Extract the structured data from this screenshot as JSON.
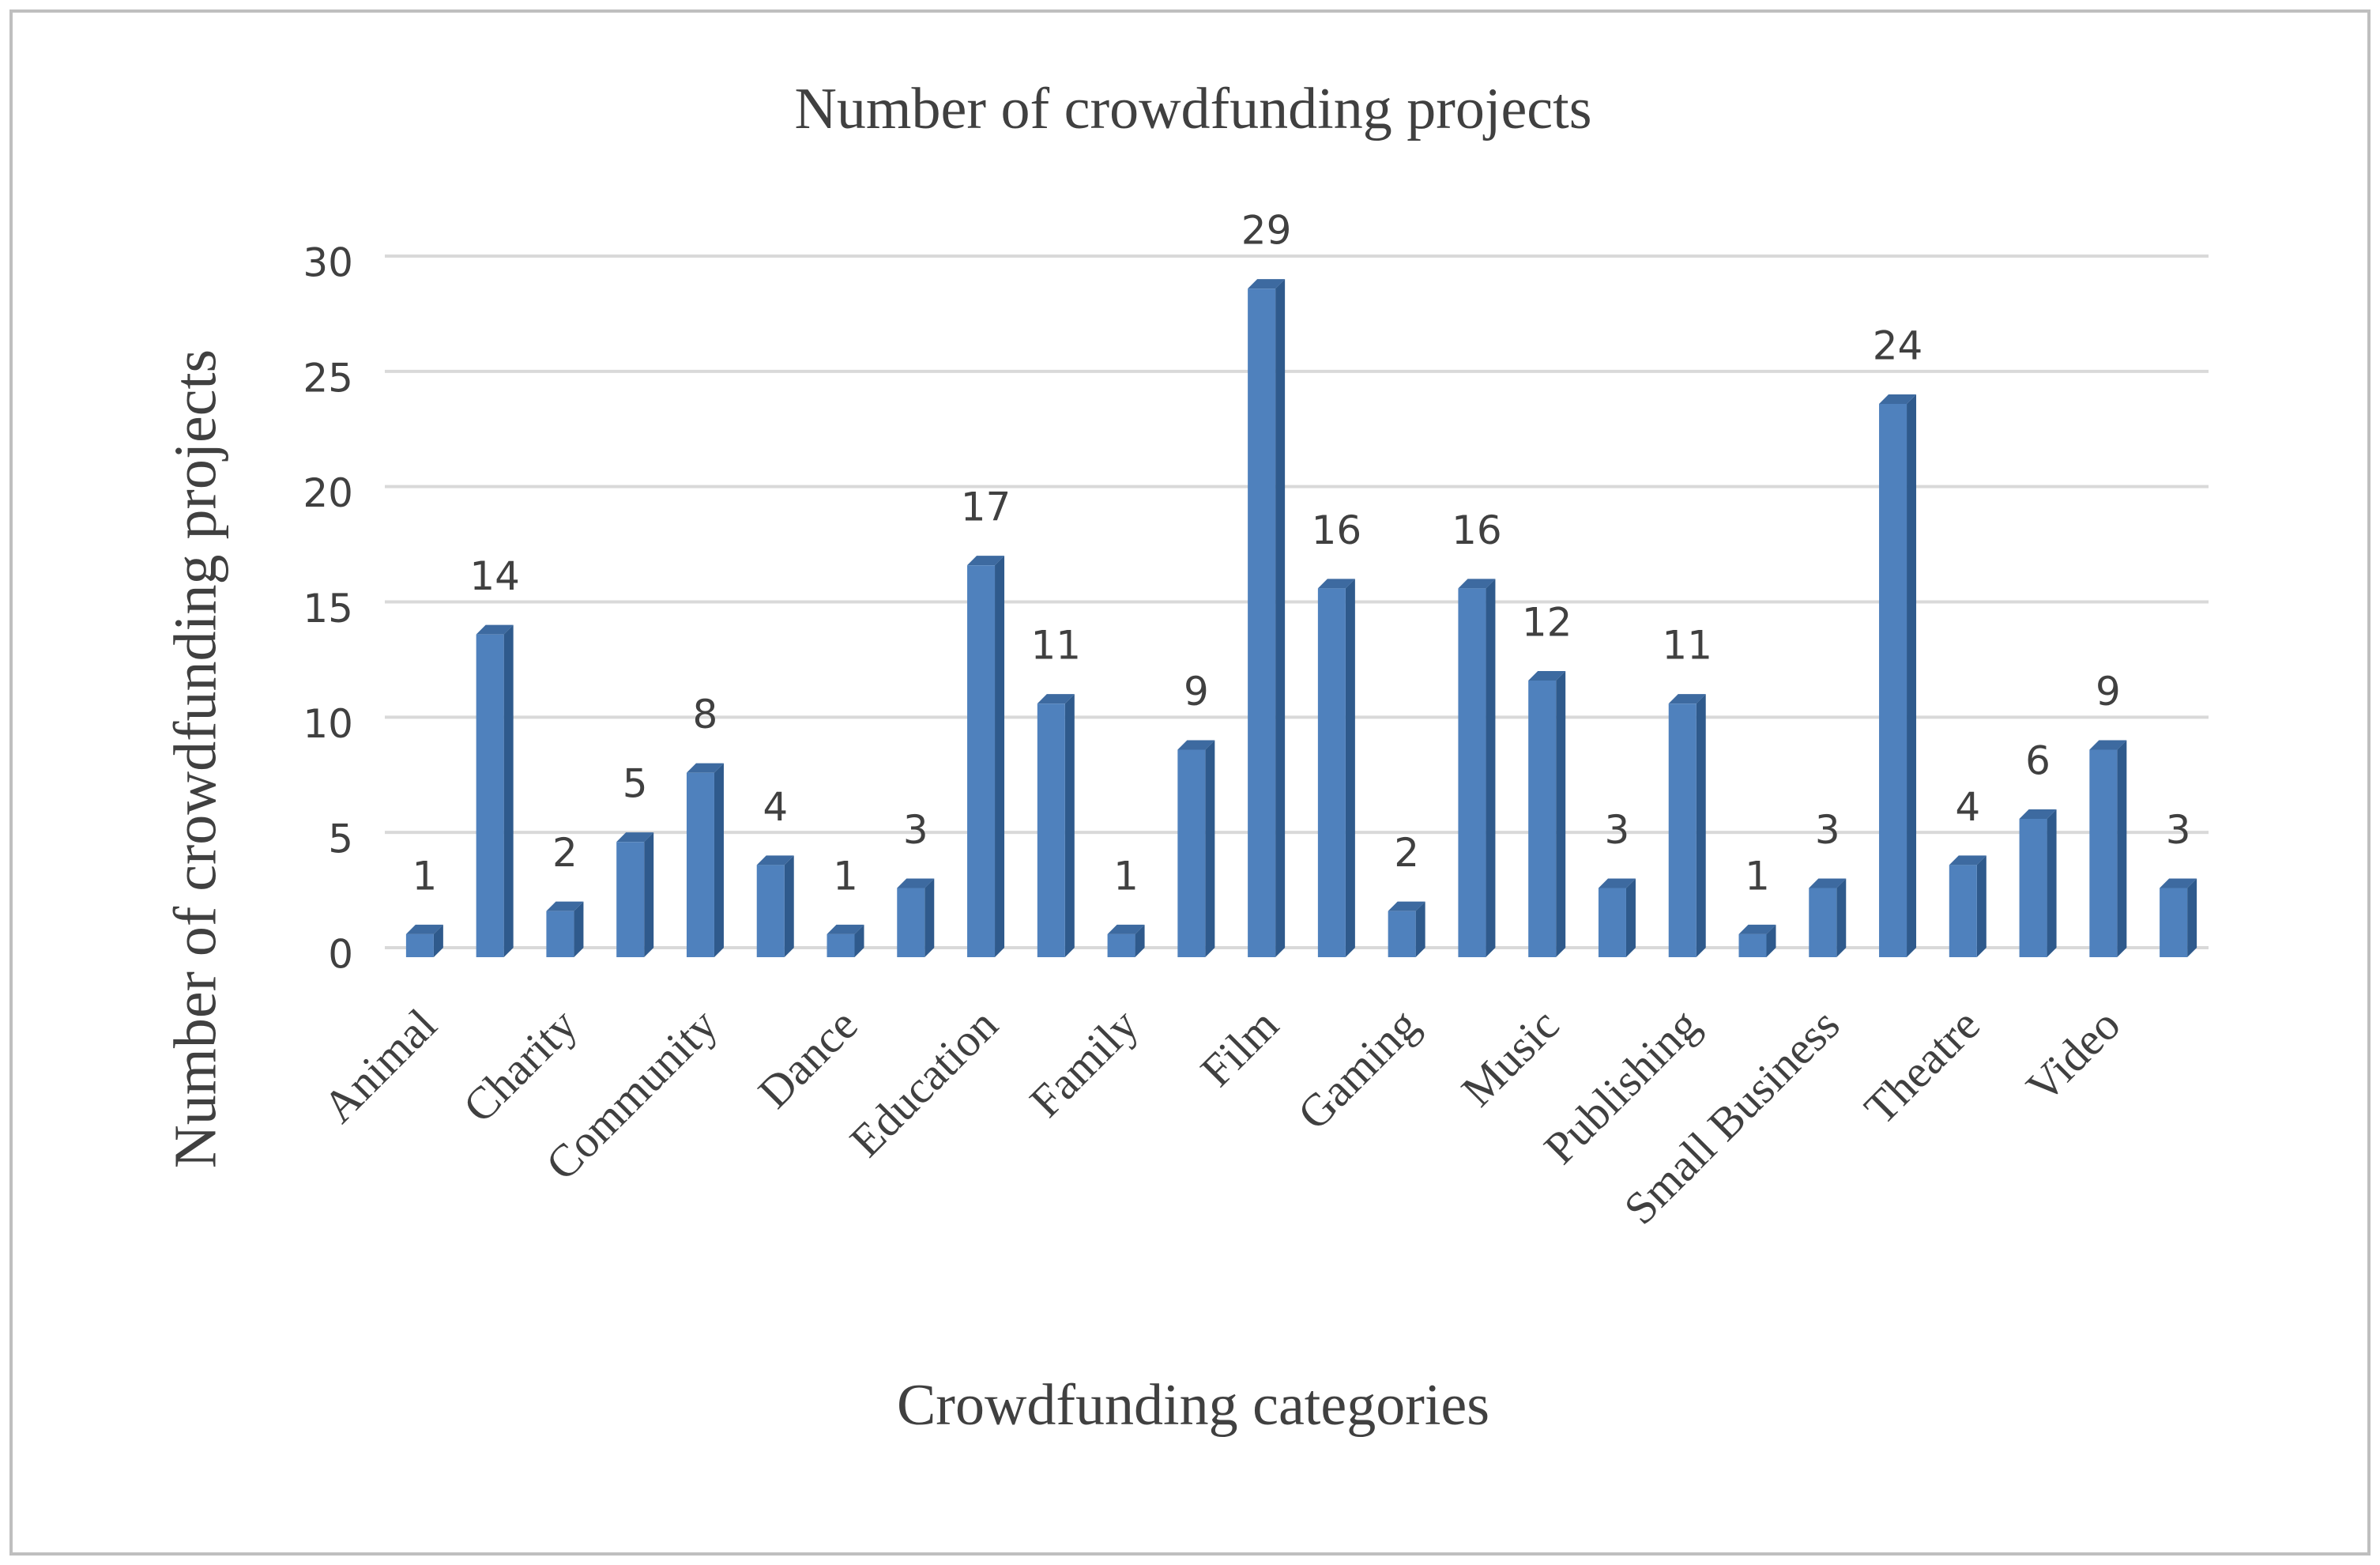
{
  "chart_data": {
    "type": "bar",
    "title": "Number of crowdfunding projects",
    "xlabel": "Crowdfunding categories",
    "ylabel": "Number of crowdfunding projects",
    "categories": [
      "Animal",
      null,
      "Charity",
      null,
      "Community",
      null,
      "Dance",
      null,
      "Education",
      null,
      "Family",
      null,
      "Film",
      null,
      "Gaming",
      null,
      "Music",
      null,
      "Publishing",
      null,
      "Small Business",
      null,
      "Theatre",
      null,
      "Video",
      null
    ],
    "values": [
      1,
      14,
      2,
      5,
      8,
      4,
      1,
      3,
      17,
      11,
      1,
      9,
      29,
      16,
      2,
      16,
      12,
      3,
      11,
      1,
      3,
      24,
      4,
      6,
      9,
      3
    ],
    "color": "#4f81bd",
    "ylim": [
      0,
      30
    ],
    "yticks": [
      0,
      5,
      10,
      15,
      20,
      25,
      30
    ],
    "grid": true
  }
}
